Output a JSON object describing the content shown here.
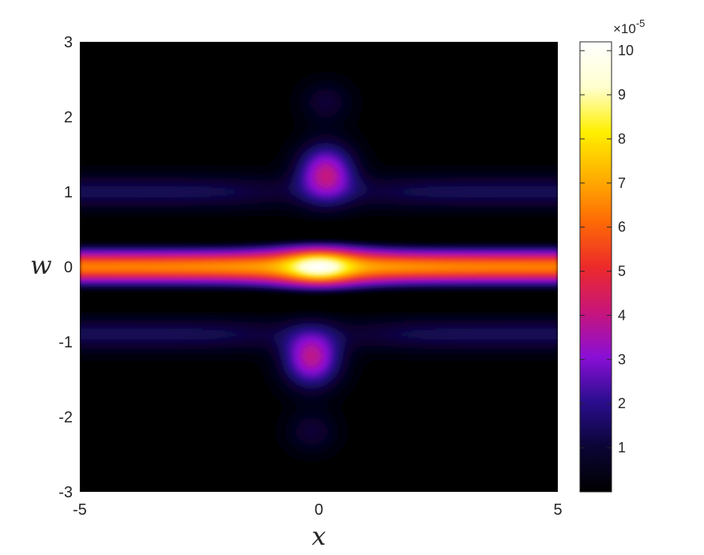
{
  "chart_data": {
    "type": "heatmap",
    "title": "",
    "xlabel": "x",
    "ylabel": "w",
    "xlim": [
      -5,
      5
    ],
    "ylim": [
      -3,
      3
    ],
    "x_ticks": [
      -5,
      0,
      5
    ],
    "x_tick_labels": [
      "-5",
      "0",
      "5"
    ],
    "y_ticks": [
      3,
      2,
      1,
      0,
      -1,
      -2,
      -3
    ],
    "y_tick_labels": [
      "3",
      "2",
      "1",
      "0",
      "-1",
      "-2",
      "-3"
    ],
    "colorbar": {
      "min": 0,
      "max": 10.2,
      "scale_factor_label": "×10",
      "scale_factor_exponent": "-5",
      "ticks": [
        1,
        2,
        3,
        4,
        5,
        6,
        7,
        8,
        9,
        10
      ],
      "tick_labels": [
        "1",
        "2",
        "3",
        "4",
        "5",
        "6",
        "7",
        "8",
        "9",
        "10"
      ],
      "colormap": "hot-purple",
      "color_stops": [
        "#000000",
        "#0a0535",
        "#2a0d8e",
        "#8a0fd6",
        "#c8157a",
        "#ec2a2a",
        "#fe6a06",
        "#ffb000",
        "#fff000",
        "#ffffd0",
        "#ffffff"
      ]
    },
    "features": [
      {
        "name": "central band",
        "w_center": 0.0,
        "width": 0.28,
        "peak": 7.0
      },
      {
        "name": "central peak",
        "x": 0.0,
        "w": 0.0,
        "peak": 10.2
      },
      {
        "name": "upper band",
        "w_center": 1.0,
        "width": 0.3,
        "peak": 1.4
      },
      {
        "name": "lower band",
        "w_center": -0.9,
        "width": 0.3,
        "peak": 1.4
      },
      {
        "name": "upper lobe",
        "x": 0.15,
        "w": 1.25,
        "peak": 3.8
      },
      {
        "name": "lower lobe",
        "x": -0.15,
        "w": -1.22,
        "peak": 3.8
      },
      {
        "name": "top spot",
        "x": 0.15,
        "w": 2.2,
        "peak": 1.0
      },
      {
        "name": "bottom spot",
        "x": -0.15,
        "w": -2.2,
        "peak": 1.0
      }
    ]
  }
}
